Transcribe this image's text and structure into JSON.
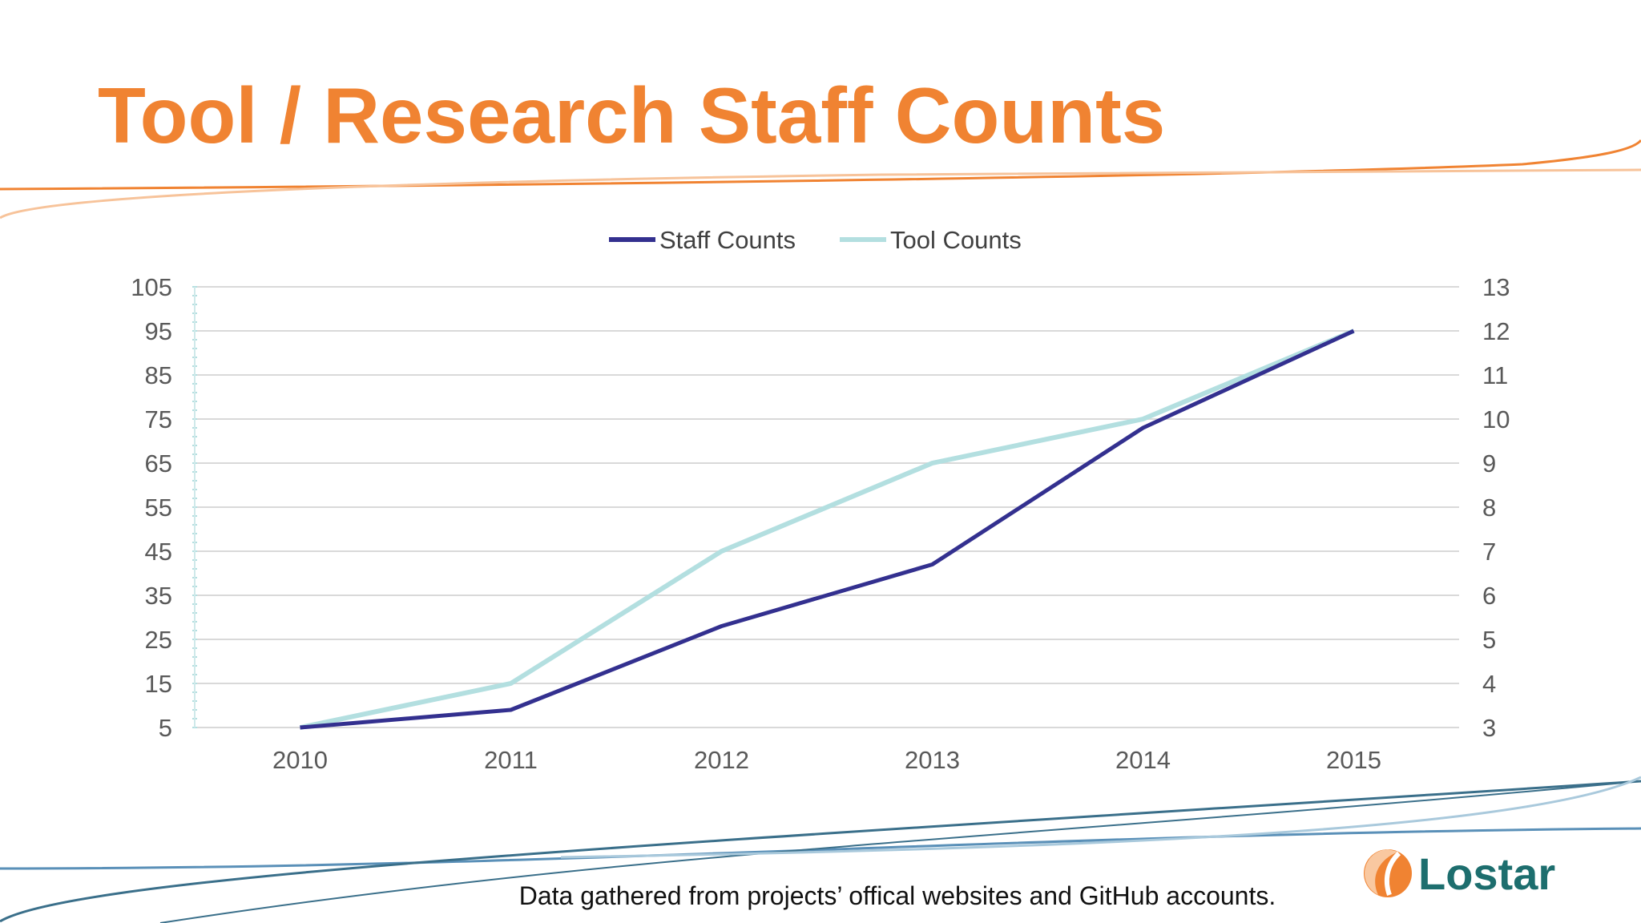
{
  "slide": {
    "title": "Tool / Research Staff Counts",
    "footer": "Data gathered from projects’ offical websites and GitHub accounts.",
    "logo_text": "Lostar",
    "colors": {
      "title": "#f08332",
      "staff": "#33308f",
      "tool": "#b3dfe0",
      "logo_teal": "#1d6e6e",
      "logo_orange": "#f08332"
    }
  },
  "chart_data": {
    "type": "line",
    "title": "",
    "categories": [
      "2010",
      "2011",
      "2012",
      "2013",
      "2014",
      "2015"
    ],
    "series": [
      {
        "name": "Staff Counts",
        "axis": "left",
        "color": "#33308f",
        "values": [
          5,
          9,
          28,
          42,
          73,
          95
        ]
      },
      {
        "name": "Tool Counts",
        "axis": "right",
        "color": "#b3dfe0",
        "values": [
          3,
          4,
          7,
          9,
          10,
          12
        ]
      }
    ],
    "y_left": {
      "min": 5,
      "max": 105,
      "ticks": [
        "5",
        "15",
        "25",
        "35",
        "45",
        "55",
        "65",
        "75",
        "85",
        "95",
        "105"
      ]
    },
    "y_right": {
      "min": 3,
      "max": 13,
      "ticks": [
        "3",
        "4",
        "5",
        "6",
        "7",
        "8",
        "9",
        "10",
        "11",
        "12",
        "13"
      ]
    },
    "grid": true,
    "legend": "top"
  }
}
